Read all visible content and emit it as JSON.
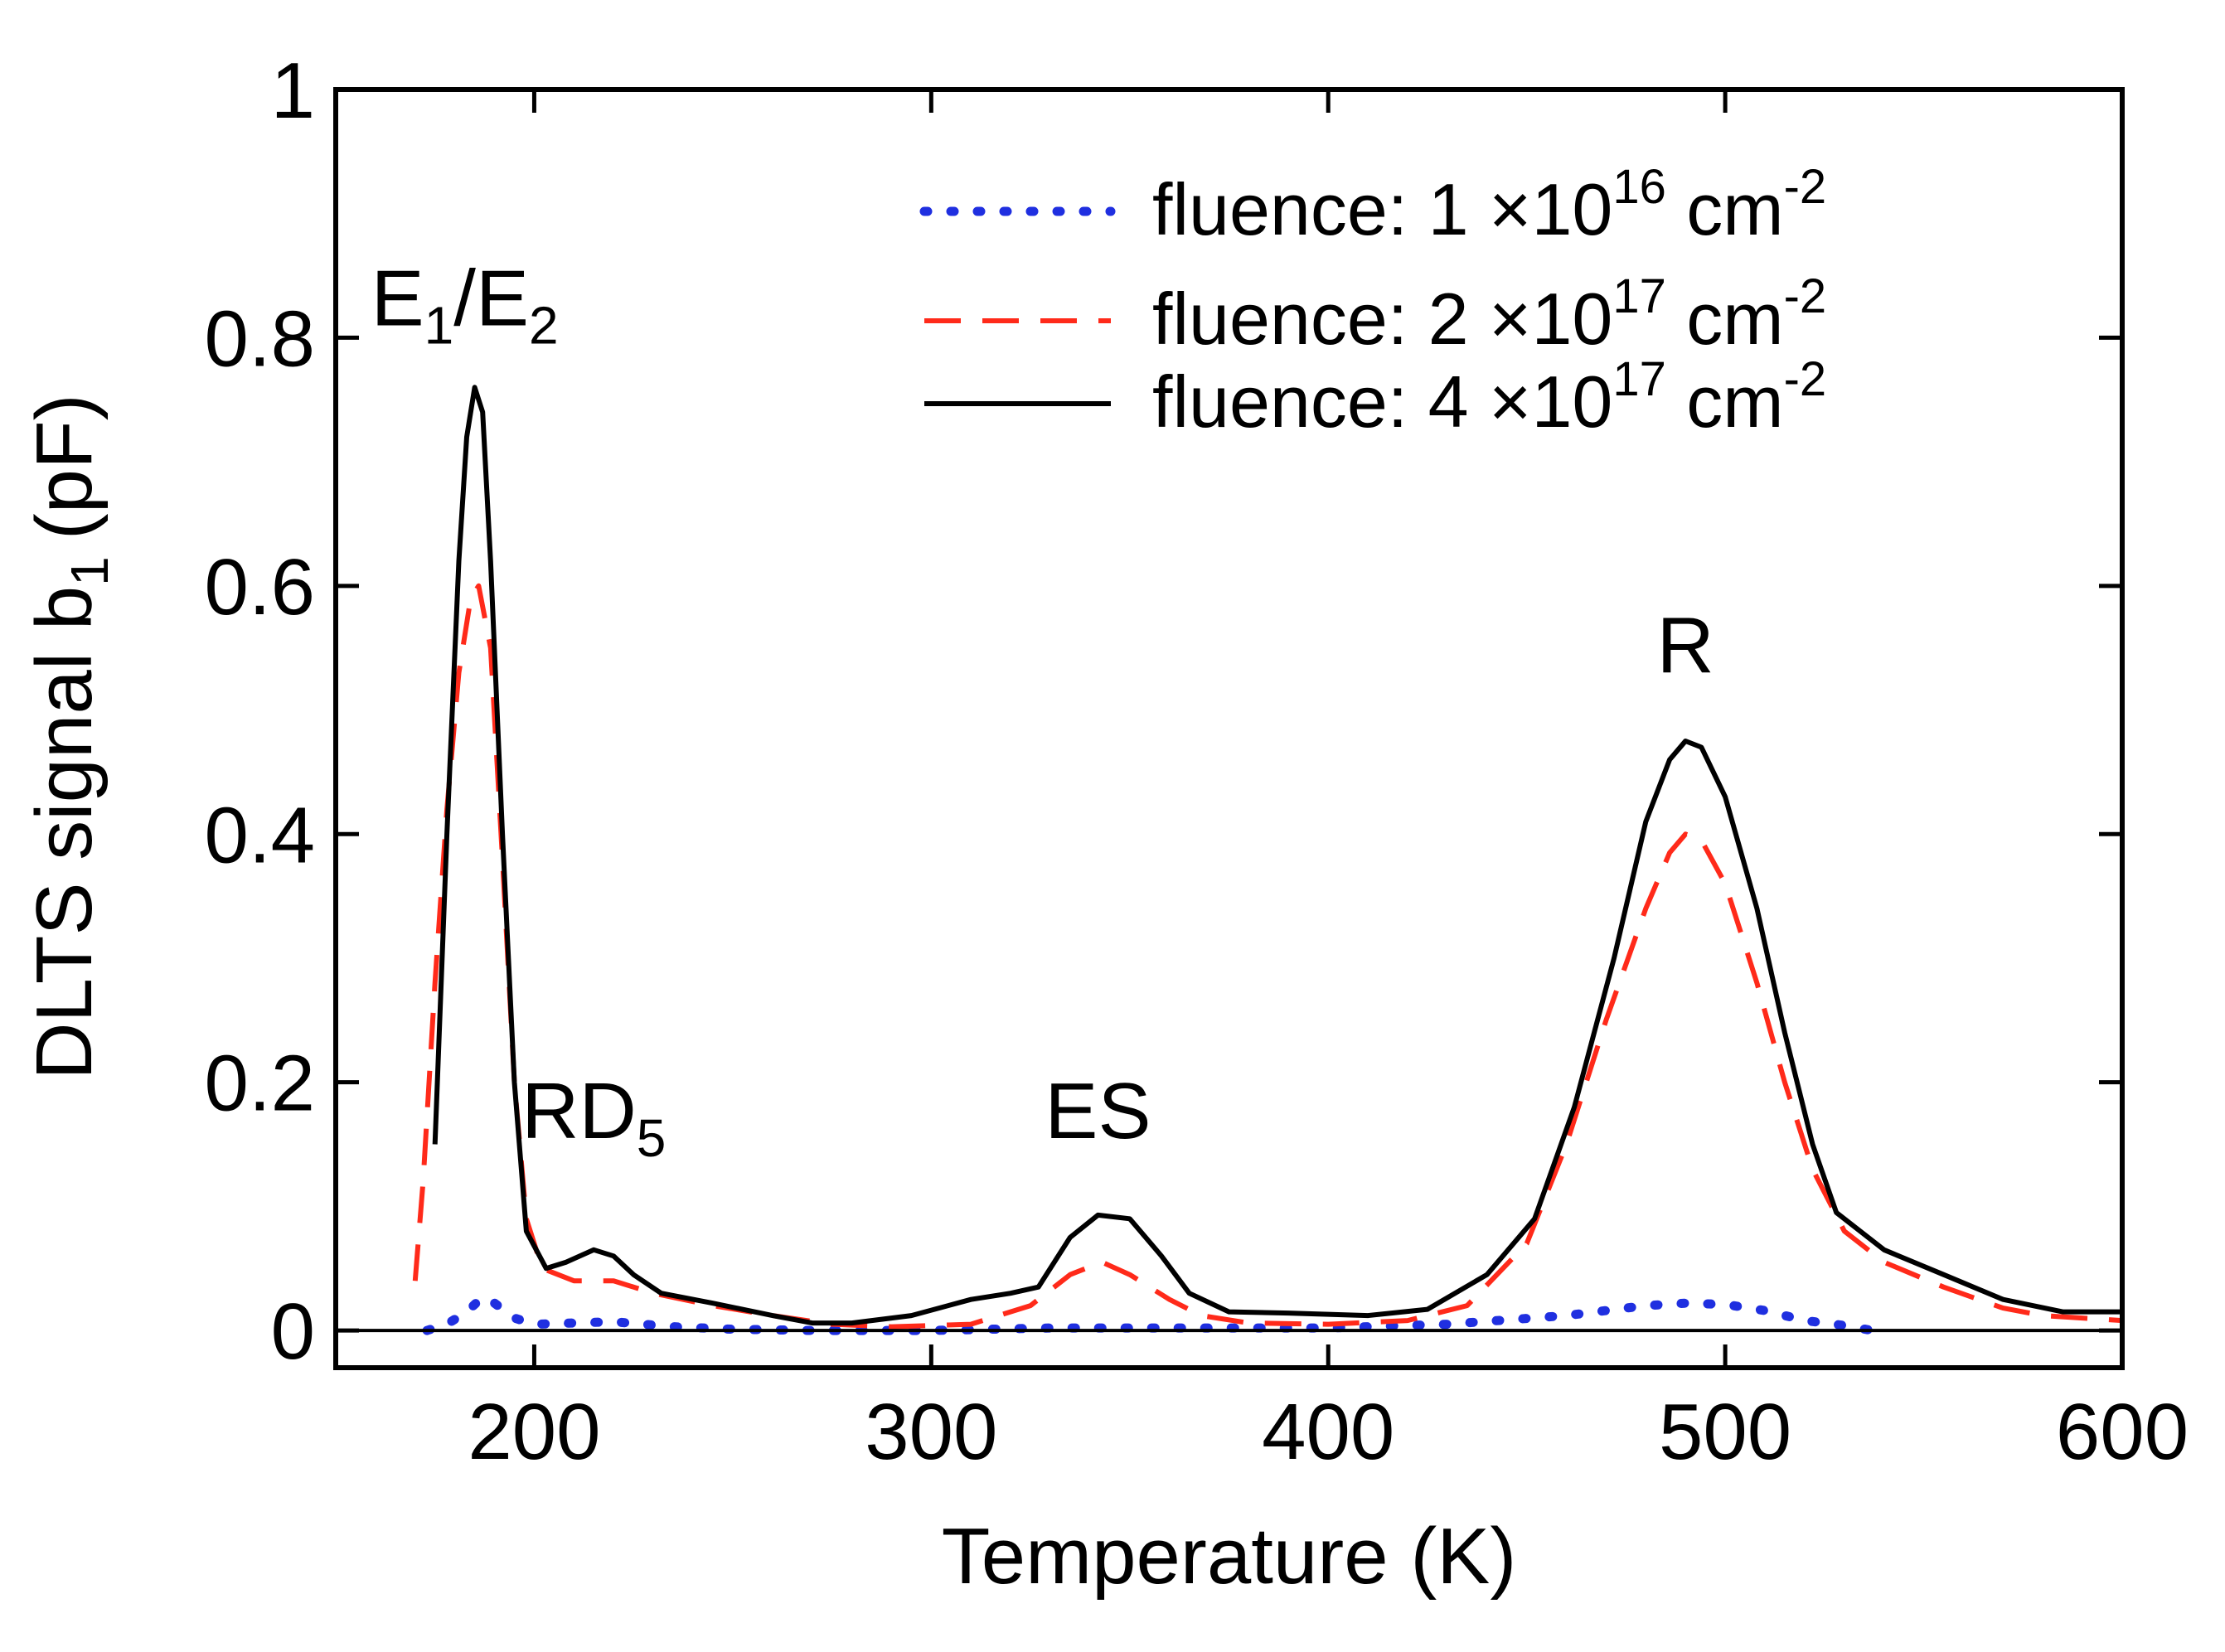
{
  "chart_data": {
    "type": "line",
    "title": "",
    "xlabel": "Temperature (K)",
    "ylabel": "DLTS signal b",
    "ylabel_subscript": "1",
    "ylabel_unit": "(pF)",
    "xlim": [
      150,
      600
    ],
    "ylim": [
      -0.03,
      1.0
    ],
    "xticks": [
      200,
      300,
      400,
      500,
      600
    ],
    "yticks": [
      0,
      0.2,
      0.4,
      0.6,
      0.8,
      1
    ],
    "xtick_labels": [
      "200",
      "300",
      "400",
      "500",
      "600"
    ],
    "ytick_labels": [
      "0",
      "0.2",
      "0.4",
      "0.6",
      "0.8",
      "1"
    ],
    "grid": false,
    "legend": {
      "position": "top-right",
      "entries": [
        {
          "prefix": "fluence: 1 ×10",
          "exp": "16",
          "unit": " cm",
          "unit_exp": "-2"
        },
        {
          "prefix": "fluence: 2 ×10",
          "exp": "17",
          "unit": " cm",
          "unit_exp": "-2"
        },
        {
          "prefix": "fluence: 4 ×10",
          "exp": "17",
          "unit": " cm",
          "unit_exp": "-2"
        }
      ]
    },
    "annotations": [
      {
        "text": "E",
        "sub": "1",
        "text2": "/E",
        "sub2": "2",
        "x": 185,
        "y": 0.81
      },
      {
        "text": "RD",
        "sub": "5",
        "x": 215,
        "y": 0.155
      },
      {
        "text": "ES",
        "x": 342,
        "y": 0.155
      },
      {
        "text": "R",
        "x": 490,
        "y": 0.53
      }
    ],
    "series": [
      {
        "name": "fluence: 1 ×10^16 cm^-2",
        "color": "#1f2fe0",
        "style": "dotted",
        "x": [
          173,
          178,
          183,
          187,
          190,
          195,
          200,
          210,
          220,
          235,
          250,
          270,
          300,
          330,
          360,
          400,
          430,
          460,
          480,
          490,
          500,
          510,
          520,
          530,
          537
        ],
        "y": [
          0.0,
          0.005,
          0.015,
          0.027,
          0.022,
          0.01,
          0.005,
          0.006,
          0.007,
          0.003,
          0.001,
          0.0,
          0.0,
          0.002,
          0.002,
          0.002,
          0.005,
          0.012,
          0.02,
          0.022,
          0.021,
          0.016,
          0.008,
          0.004,
          0.0
        ]
      },
      {
        "name": "fluence: 2 ×10^17 cm^-2",
        "color": "#ff2a1a",
        "style": "dashed",
        "x": [
          170,
          172,
          175,
          178,
          181,
          184,
          186,
          189,
          192,
          195,
          198,
          202,
          210,
          220,
          230,
          245,
          260,
          275,
          290,
          310,
          325,
          335,
          343,
          350,
          360,
          368,
          380,
          400,
          420,
          435,
          450,
          460,
          470,
          480,
          486,
          490,
          494,
          500,
          508,
          515,
          522,
          530,
          540,
          555,
          570,
          580,
          600
        ],
        "y": [
          0.04,
          0.12,
          0.28,
          0.42,
          0.53,
          0.59,
          0.6,
          0.55,
          0.38,
          0.2,
          0.09,
          0.05,
          0.04,
          0.04,
          0.03,
          0.02,
          0.012,
          0.005,
          0.003,
          0.005,
          0.02,
          0.045,
          0.055,
          0.045,
          0.025,
          0.012,
          0.006,
          0.005,
          0.008,
          0.02,
          0.07,
          0.15,
          0.25,
          0.34,
          0.385,
          0.4,
          0.395,
          0.36,
          0.28,
          0.2,
          0.13,
          0.08,
          0.055,
          0.035,
          0.018,
          0.012,
          0.008
        ]
      },
      {
        "name": "fluence: 4 ×10^17 cm^-2",
        "color": "#000000",
        "style": "solid",
        "x": [
          175,
          178,
          181,
          183,
          185,
          187,
          189,
          192,
          195,
          198,
          203,
          208,
          215,
          220,
          225,
          232,
          245,
          260,
          270,
          280,
          295,
          310,
          320,
          327,
          335,
          342,
          350,
          358,
          365,
          375,
          390,
          410,
          425,
          440,
          452,
          462,
          472,
          480,
          486,
          490,
          494,
          500,
          508,
          515,
          522,
          528,
          540,
          555,
          570,
          585,
          600
        ],
        "y": [
          0.15,
          0.4,
          0.62,
          0.72,
          0.76,
          0.74,
          0.62,
          0.4,
          0.2,
          0.08,
          0.05,
          0.055,
          0.065,
          0.06,
          0.045,
          0.03,
          0.022,
          0.012,
          0.006,
          0.006,
          0.012,
          0.025,
          0.03,
          0.035,
          0.075,
          0.093,
          0.09,
          0.06,
          0.03,
          0.015,
          0.014,
          0.012,
          0.017,
          0.045,
          0.09,
          0.18,
          0.3,
          0.41,
          0.46,
          0.475,
          0.47,
          0.43,
          0.34,
          0.24,
          0.15,
          0.095,
          0.065,
          0.045,
          0.025,
          0.015,
          0.015
        ]
      }
    ]
  }
}
